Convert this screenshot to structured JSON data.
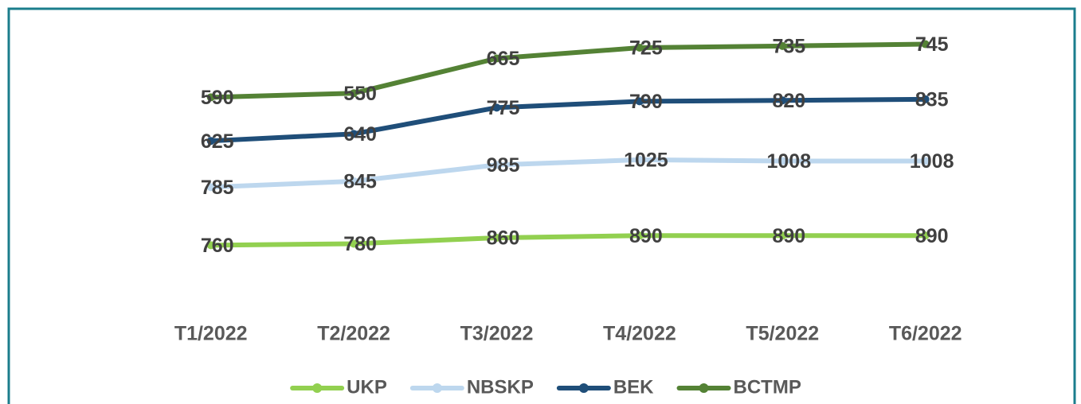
{
  "chart_data": {
    "type": "line",
    "stacked": true,
    "categories": [
      "T1/2022",
      "T2/2022",
      "T3/2022",
      "T4/2022",
      "T5/2022",
      "T6/2022"
    ],
    "series": [
      {
        "name": "UKP",
        "color": "#92d050",
        "values": [
          760,
          780,
          860,
          890,
          890,
          890
        ]
      },
      {
        "name": "NBSKP",
        "color": "#bdd7ee",
        "values": [
          785,
          845,
          985,
          1025,
          1008,
          1008
        ]
      },
      {
        "name": "BEK",
        "color": "#1f4e79",
        "values": [
          625,
          640,
          775,
          790,
          820,
          835
        ]
      },
      {
        "name": "BCTMP",
        "color": "#548235",
        "values": [
          590,
          550,
          665,
          725,
          735,
          745
        ]
      }
    ],
    "ylim": [
      0,
      4000
    ],
    "legend": "bottom"
  }
}
